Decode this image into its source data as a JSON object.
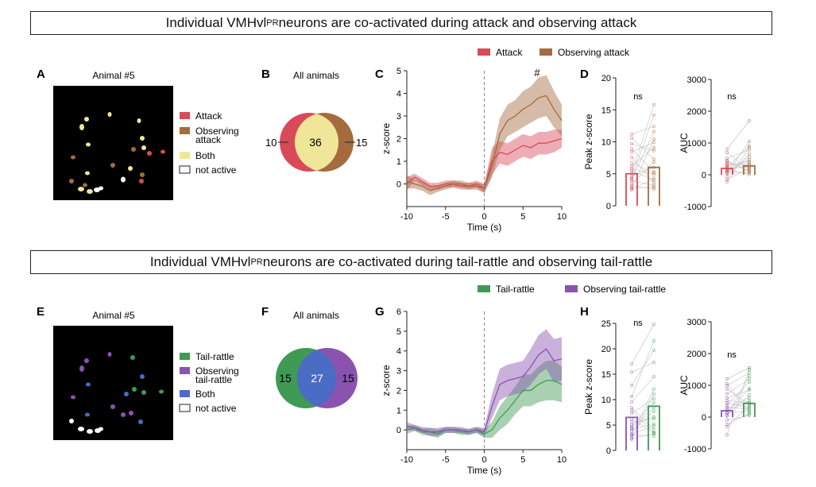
{
  "colors": {
    "attack": "#d94a59",
    "observing_attack": "#a56b3e",
    "both_top": "#f0e699",
    "tail_rattle": "#3f9a55",
    "observing_tail": "#8a53b0",
    "both_bottom": "#4a6cc4",
    "not_active": "#ffffff"
  },
  "row_top": {
    "title_pre": "Individual VMHvl",
    "title_sup": "PR",
    "title_post": " neurons are co-activated during attack and observing attack",
    "panel_a": {
      "letter": "A",
      "subtitle": "Animal #5",
      "legend": [
        {
          "label_lines": [
            "Attack"
          ],
          "color_key": "attack"
        },
        {
          "label_lines": [
            "Observing",
            "attack"
          ],
          "color_key": "observing_attack"
        },
        {
          "label_lines": [
            "Both"
          ],
          "color_key": "both_top"
        },
        {
          "label_lines": [
            "not active"
          ],
          "color_key": "not_active"
        }
      ]
    },
    "panel_b": {
      "letter": "B",
      "subtitle": "All animals",
      "left": "10",
      "overlap": "36",
      "right": "15"
    },
    "panel_c": {
      "letter": "C",
      "legend": [
        {
          "label": "Attack",
          "color_key": "attack"
        },
        {
          "label": "Observing attack",
          "color_key": "observing_attack"
        }
      ],
      "annotation": "#"
    },
    "panel_d": {
      "letter": "D",
      "left_sig": "ns",
      "right_sig": "ns"
    }
  },
  "row_bottom": {
    "title_pre": "Individual VMHvl",
    "title_sup": "PR",
    "title_post": " neurons are co-activated during tail-rattle and observing tail-rattle",
    "panel_e": {
      "letter": "E",
      "subtitle": "Animal #5",
      "legend": [
        {
          "label_lines": [
            "Tail-rattle"
          ],
          "color_key": "tail_rattle"
        },
        {
          "label_lines": [
            "Observing",
            "tail-rattle"
          ],
          "color_key": "observing_tail"
        },
        {
          "label_lines": [
            "Both"
          ],
          "color_key": "both_bottom"
        },
        {
          "label_lines": [
            "not active"
          ],
          "color_key": "not_active"
        }
      ]
    },
    "panel_f": {
      "letter": "F",
      "subtitle": "All animals",
      "left": "15",
      "overlap": "27",
      "right": "15"
    },
    "panel_g": {
      "letter": "G",
      "legend": [
        {
          "label": "Tail-rattle",
          "color_key": "tail_rattle"
        },
        {
          "label": "Observing tail-rattle",
          "color_key": "observing_tail"
        }
      ]
    },
    "panel_h": {
      "letter": "H",
      "left_sig": "ns",
      "right_sig": "ns"
    }
  },
  "chart_data": [
    {
      "id": "C",
      "type": "line",
      "xlabel": "Time (s)",
      "ylabel": "z-score",
      "xlim": [
        -10,
        10
      ],
      "ylim": [
        -1,
        5
      ],
      "xticks": [
        -10,
        -5,
        0,
        5,
        10
      ],
      "yticks": [
        0,
        1,
        2,
        3,
        4,
        5
      ],
      "event_line_x": 0,
      "x": [
        -10,
        -9,
        -8,
        -7,
        -6,
        -5,
        -4,
        -3,
        -2,
        -1,
        0,
        1,
        2,
        3,
        4,
        5,
        6,
        7,
        8,
        9,
        10
      ],
      "series": [
        {
          "name": "Attack",
          "color_key": "attack",
          "mean": [
            0.0,
            0.3,
            0.1,
            -0.1,
            -0.1,
            0.0,
            0.0,
            -0.1,
            -0.1,
            0.0,
            -0.2,
            1.0,
            1.4,
            1.3,
            1.5,
            1.7,
            1.6,
            1.8,
            1.8,
            1.9,
            2.0
          ],
          "sem": [
            0.3,
            0.15,
            0.15,
            0.15,
            0.15,
            0.15,
            0.15,
            0.15,
            0.15,
            0.15,
            0.2,
            0.6,
            0.5,
            0.5,
            0.5,
            0.5,
            0.5,
            0.5,
            0.5,
            0.5,
            0.4
          ]
        },
        {
          "name": "Observing attack",
          "color_key": "observing_attack",
          "mean": [
            0.1,
            0.0,
            -0.1,
            -0.3,
            -0.2,
            -0.1,
            0.0,
            0.0,
            -0.1,
            -0.1,
            -0.2,
            0.8,
            2.2,
            2.8,
            3.0,
            3.3,
            3.5,
            3.8,
            3.9,
            3.3,
            2.8
          ],
          "sem": [
            0.3,
            0.2,
            0.2,
            0.2,
            0.15,
            0.15,
            0.15,
            0.15,
            0.15,
            0.15,
            0.2,
            0.5,
            0.7,
            0.7,
            0.7,
            0.8,
            0.8,
            0.9,
            0.9,
            0.8,
            0.7
          ]
        }
      ]
    },
    {
      "id": "D-left",
      "type": "bar",
      "ylabel": "Peak z-score",
      "ylim": [
        0,
        20
      ],
      "yticks": [
        0,
        5,
        10,
        15,
        20
      ],
      "categories": [
        "Attack",
        "Observing attack"
      ],
      "values": [
        5.0,
        6.0
      ],
      "points": [
        [
          5.1,
          2.5,
          8.4,
          4.6,
          3.9,
          11.2,
          6.7,
          2.8,
          9.7,
          4.3,
          5.8,
          3.4,
          7.6,
          2.7,
          10.6,
          5.5,
          4.1,
          8.9,
          3.1,
          6.2
        ],
        [
          15.8,
          4.3,
          9.9,
          6.0,
          3.2,
          12.4,
          5.1,
          2.9,
          8.6,
          14.2,
          4.9,
          6.8,
          3.6,
          10.4,
          7.3,
          4.0,
          11.6,
          5.3,
          2.6,
          9.1
        ]
      ]
    },
    {
      "id": "D-right",
      "type": "bar",
      "ylabel": "AUC",
      "ylim": [
        -1000,
        3000
      ],
      "yticks": [
        -1000,
        0,
        1000,
        2000,
        3000
      ],
      "categories": [
        "Attack",
        "Observing attack"
      ],
      "values": [
        200,
        280
      ],
      "points": [
        [
          150,
          -60,
          420,
          230,
          90,
          810,
          320,
          -150,
          520,
          260,
          180,
          60,
          700,
          -220,
          380,
          120,
          450,
          40,
          300,
          210
        ],
        [
          300,
          650,
          120,
          900,
          60,
          1700,
          420,
          200,
          780,
          330,
          10,
          560,
          150,
          860,
          250,
          480,
          90,
          1050,
          380,
          240
        ]
      ]
    },
    {
      "id": "G",
      "type": "line",
      "xlabel": "Time (s)",
      "ylabel": "z-score",
      "xlim": [
        -10,
        10
      ],
      "ylim": [
        -1,
        6
      ],
      "xticks": [
        -10,
        -5,
        0,
        5,
        10
      ],
      "yticks": [
        0,
        1,
        2,
        3,
        4,
        5,
        6
      ],
      "event_line_x": 0,
      "x": [
        -10,
        -9,
        -8,
        -7,
        -6,
        -5,
        -4,
        -3,
        -2,
        -1,
        0,
        1,
        2,
        3,
        4,
        5,
        6,
        7,
        8,
        9,
        10
      ],
      "series": [
        {
          "name": "Tail-rattle",
          "color_key": "tail_rattle",
          "mean": [
            0.0,
            0.1,
            -0.1,
            -0.1,
            -0.2,
            0.0,
            0.0,
            -0.1,
            -0.1,
            0.0,
            -0.2,
            0.0,
            0.6,
            1.0,
            1.5,
            2.0,
            2.0,
            2.3,
            2.5,
            2.5,
            2.3
          ],
          "sem": [
            0.2,
            0.15,
            0.15,
            0.2,
            0.2,
            0.15,
            0.15,
            0.15,
            0.15,
            0.15,
            0.2,
            0.4,
            0.6,
            0.7,
            0.7,
            0.8,
            0.8,
            0.9,
            1.0,
            1.0,
            0.9
          ]
        },
        {
          "name": "Observing tail-rattle",
          "color_key": "observing_tail",
          "mean": [
            0.2,
            0.1,
            0.0,
            -0.1,
            -0.1,
            0.0,
            0.0,
            0.0,
            -0.1,
            0.0,
            -0.1,
            1.2,
            2.3,
            2.5,
            2.6,
            2.7,
            3.2,
            3.8,
            4.1,
            3.5,
            3.6
          ],
          "sem": [
            0.2,
            0.15,
            0.15,
            0.2,
            0.2,
            0.15,
            0.15,
            0.15,
            0.15,
            0.15,
            0.2,
            0.6,
            0.8,
            0.8,
            0.8,
            0.8,
            0.9,
            1.0,
            1.0,
            1.1,
            1.1
          ]
        }
      ]
    },
    {
      "id": "H-left",
      "type": "bar",
      "ylabel": "Peak z-score",
      "ylim": [
        0,
        25
      ],
      "yticks": [
        0,
        5,
        10,
        15,
        20,
        25
      ],
      "categories": [
        "Observing tail-rattle",
        "Tail-rattle"
      ],
      "values": [
        6.5,
        8.7
      ],
      "points": [
        [
          17.0,
          3.2,
          9.5,
          5.1,
          12.8,
          2.4,
          7.3,
          4.2,
          10.6,
          3.8,
          6.2,
          2.9,
          8.4,
          4.7,
          15.4,
          3.1,
          5.6,
          2.2,
          7.9,
          4.4
        ],
        [
          24.8,
          4.8,
          14.5,
          6.6,
          19.7,
          3.3,
          10.2,
          5.2,
          21.6,
          7.7,
          3.4,
          12.1,
          4.1,
          9.4,
          17.3,
          2.8,
          6.2,
          11.1,
          3.5,
          8.4
        ]
      ]
    },
    {
      "id": "H-right",
      "type": "bar",
      "ylabel": "AUC",
      "ylim": [
        -1000,
        3000
      ],
      "yticks": [
        -1000,
        0,
        1000,
        2000,
        3000
      ],
      "categories": [
        "Observing tail-rattle",
        "Tail-rattle"
      ],
      "values": [
        200,
        430
      ],
      "points": [
        [
          -560,
          320,
          880,
          150,
          -220,
          1200,
          450,
          60,
          730,
          -90,
          260,
          980,
          120,
          600,
          -300,
          380,
          1050,
          210,
          40,
          520
        ],
        [
          1500,
          250,
          400,
          900,
          100,
          1550,
          300,
          700,
          1200,
          50,
          600,
          1400,
          200,
          850,
          350,
          1100,
          150,
          500,
          1300,
          450
        ]
      ]
    }
  ]
}
